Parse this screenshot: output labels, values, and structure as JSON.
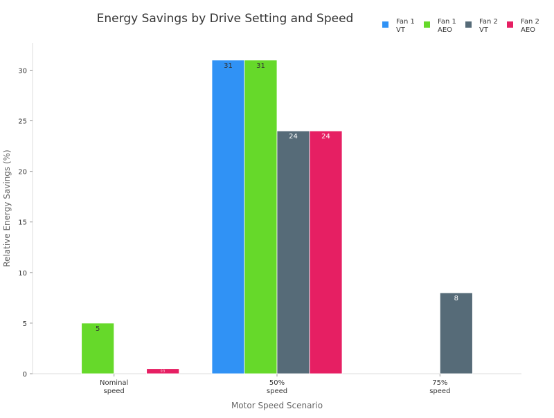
{
  "chart_data": {
    "type": "bar",
    "title": "Energy Savings by Drive Setting and Speed",
    "xlabel": "Motor Speed Scenario",
    "ylabel": "Relative Energy Savings (%)",
    "categories": [
      [
        "Nominal",
        "speed"
      ],
      [
        "50%",
        "speed"
      ],
      [
        "75%",
        "speed"
      ]
    ],
    "ylim": [
      0,
      32.7
    ],
    "yticks": [
      0,
      5,
      10,
      15,
      20,
      25,
      30
    ],
    "grid": false,
    "legend_position": "top-right",
    "series": [
      {
        "name": [
          "Fan 1",
          "VT"
        ],
        "color": "#3092f5",
        "label_color": "#333333",
        "values": [
          0,
          31,
          0
        ]
      },
      {
        "name": [
          "Fan 1",
          "AEO"
        ],
        "color": "#66d92a",
        "label_color": "#333333",
        "values": [
          5,
          31,
          0
        ]
      },
      {
        "name": [
          "Fan 2",
          "VT"
        ],
        "color": "#566b78",
        "label_color": "#ffffff",
        "values": [
          0,
          24,
          8
        ]
      },
      {
        "name": [
          "Fan 2",
          "AEO"
        ],
        "color": "#e61f63",
        "label_color": "#ffffff",
        "values": [
          0.5,
          24,
          0
        ]
      }
    ]
  }
}
